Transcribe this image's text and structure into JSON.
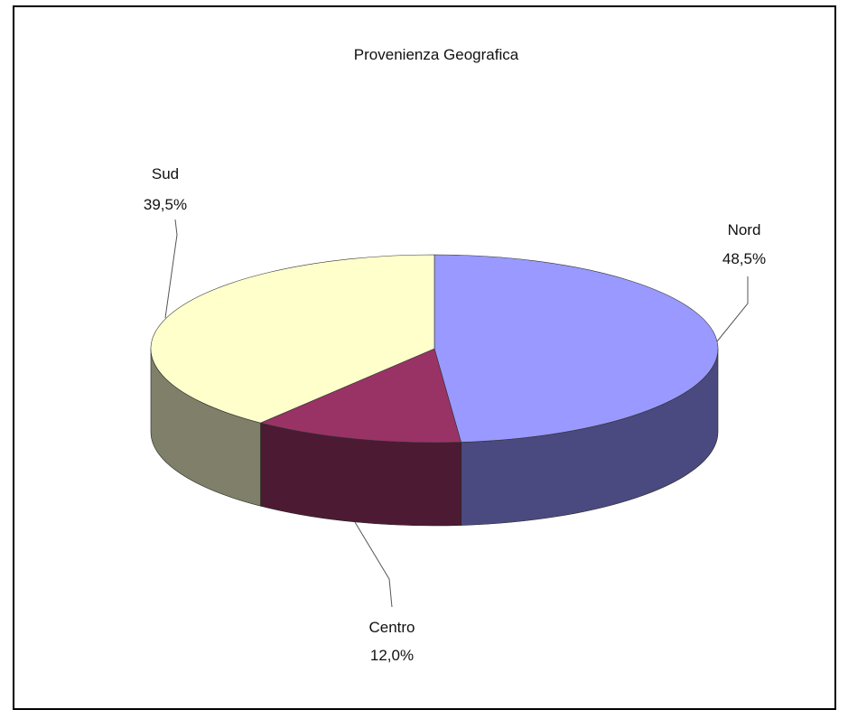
{
  "chart_data": {
    "type": "pie",
    "title": "Provenienza Geografica",
    "three_d": true,
    "slices": [
      {
        "label": "Nord",
        "value_text": "48,5%",
        "value": 48.5,
        "top_color": "#9999ff",
        "side_color": "#4a4a80"
      },
      {
        "label": "Centro",
        "value_text": "12,0%",
        "value": 12.0,
        "top_color": "#993366",
        "side_color": "#4d1a33"
      },
      {
        "label": "Sud",
        "value_text": "39,5%",
        "value": 39.5,
        "top_color": "#ffffcc",
        "side_color": "#80806a"
      }
    ]
  }
}
